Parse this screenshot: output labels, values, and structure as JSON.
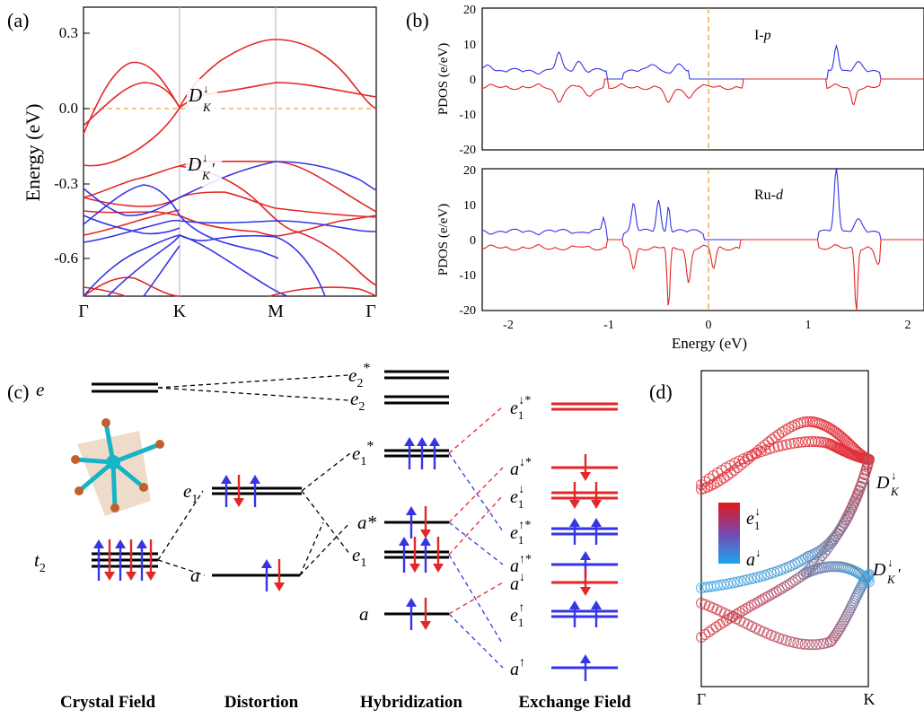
{
  "colors": {
    "spin_up": "#3535e6",
    "spin_down": "#e32626",
    "fermi": "#e8a23c",
    "frame": "#000000",
    "vline": "#bdbdbd",
    "level": "#000000"
  },
  "panel_a": {
    "label": "(a)",
    "ylabel": "Energy (eV)",
    "yticks": [
      "0.3",
      "0.0",
      "-0.3",
      "-0.6"
    ],
    "kpoints": [
      "Γ",
      "K",
      "M",
      "Γ"
    ],
    "annot_D": "D",
    "annot_K": "K",
    "annot_prime": "′",
    "annot_arrow": "↓"
  },
  "panel_b": {
    "label": "(b)",
    "ylabel": "PDOS (e/eV)",
    "xlabel": "Energy (eV)",
    "xticks": [
      "-2",
      "-1",
      "0",
      "1",
      "2"
    ],
    "yticks": [
      "20",
      "10",
      "0",
      "-10",
      "-20"
    ],
    "top_label": "I-",
    "top_label_it": "p",
    "bottom_label": "Ru-",
    "bottom_label_it": "d"
  },
  "panel_c": {
    "label": "(c)",
    "stage_labels": [
      "Crystal Field",
      "Distortion",
      "Hybridization",
      "Exchange Field"
    ],
    "level_e": "e",
    "level_t2": "t",
    "sub_2": "2",
    "level_e1": "e",
    "sub_1": "1",
    "level_a": "a",
    "level_e2star": "e",
    "star": "*",
    "level_e2": "e",
    "level_e1star": "e",
    "level_astar": "a*",
    "level_e1_hyb": "e",
    "level_a_hyb": "a",
    "ex_levels": [
      {
        "base": "e",
        "sub": "1",
        "sup": "↓*"
      },
      {
        "base": "a",
        "sub": "",
        "sup": "↓*"
      },
      {
        "base": "e",
        "sub": "1",
        "sup": "↓"
      },
      {
        "base": "e",
        "sub": "1",
        "sup": "↑*"
      },
      {
        "base": "a",
        "sub": "",
        "sup": "↑*"
      },
      {
        "base": "a",
        "sub": "",
        "sup": "↓"
      },
      {
        "base": "e",
        "sub": "1",
        "sup": "↑"
      },
      {
        "base": "a",
        "sub": "",
        "sup": "↑"
      }
    ]
  },
  "panel_d": {
    "label": "(d)",
    "kpoints": [
      "Γ",
      "K"
    ],
    "legend_top": "e",
    "legend_top_sub": "1",
    "legend_top_sup": "↓",
    "legend_bottom": "a",
    "legend_bottom_sup": "↓",
    "annot_D": "D",
    "annot_K": "K",
    "annot_prime": "′",
    "annot_arrow": "↓"
  }
}
